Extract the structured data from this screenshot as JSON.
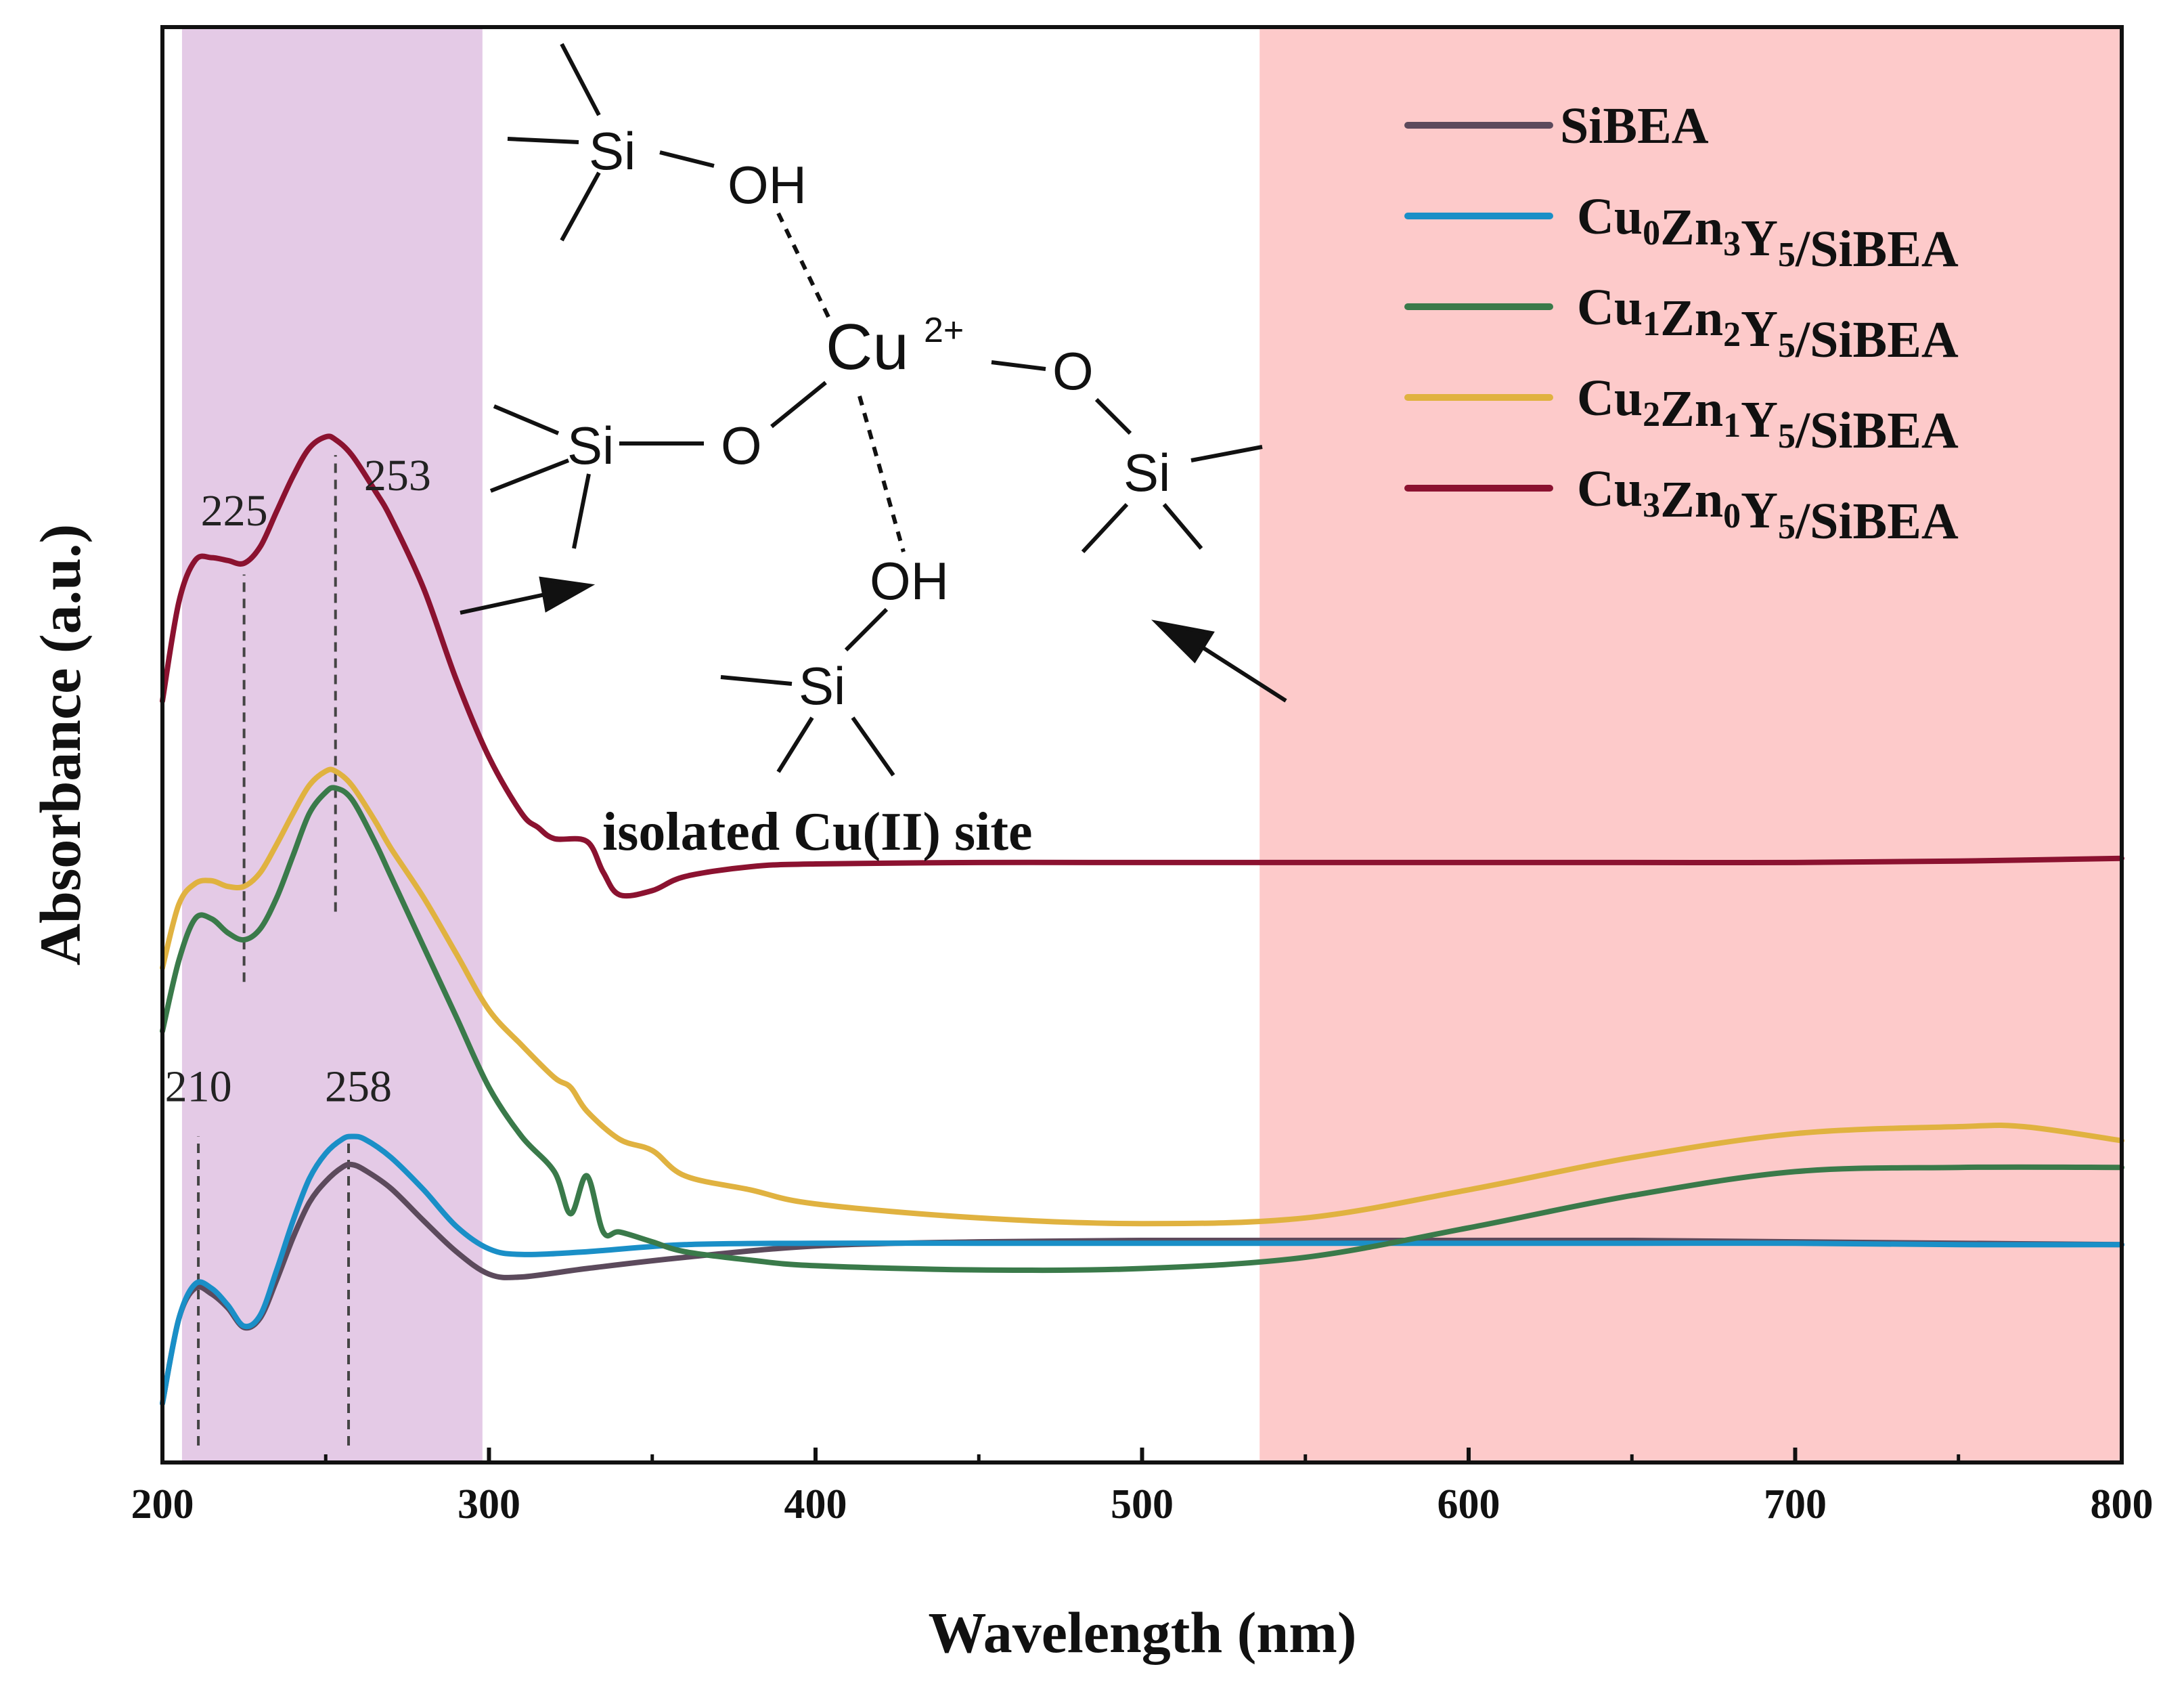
{
  "chart_data": {
    "type": "line",
    "title": "",
    "xlabel": "Wavelength (nm)",
    "ylabel": "Absorbance (a.u.)",
    "xlim": [
      200,
      800
    ],
    "ylim": [
      0,
      1
    ],
    "xticks": [
      200,
      300,
      400,
      500,
      600,
      700,
      800
    ],
    "yticks_shown": false,
    "shaded_regions": [
      {
        "x_start": 206,
        "x_end": 298,
        "color": "#e4cae6"
      },
      {
        "x_start": 536,
        "x_end": 800,
        "color": "#fdcaca"
      }
    ],
    "series": [
      {
        "name": "SiBEA",
        "color": "#5c4a5c",
        "x": [
          200,
          205,
          210,
          215,
          220,
          225,
          230,
          235,
          240,
          245,
          250,
          255,
          258,
          262,
          270,
          280,
          290,
          300,
          310,
          330,
          360,
          400,
          450,
          500,
          550,
          600,
          650,
          700,
          750,
          800
        ],
        "y": [
          0.03,
          0.09,
          0.112,
          0.108,
          0.098,
          0.084,
          0.091,
          0.118,
          0.148,
          0.173,
          0.188,
          0.198,
          0.2,
          0.196,
          0.183,
          0.16,
          0.138,
          0.122,
          0.12,
          0.126,
          0.134,
          0.142,
          0.145,
          0.146,
          0.146,
          0.146,
          0.146,
          0.145,
          0.144,
          0.143
        ]
      },
      {
        "name": "Cu0Zn3Y5/SiBEA",
        "color": "#1a8fc7",
        "x": [
          200,
          205,
          210,
          215,
          220,
          225,
          230,
          235,
          240,
          245,
          250,
          255,
          258,
          262,
          270,
          280,
          290,
          300,
          310,
          330,
          360,
          400,
          450,
          500,
          550,
          600,
          650,
          700,
          750,
          800
        ],
        "y": [
          0.03,
          0.09,
          0.115,
          0.112,
          0.1,
          0.085,
          0.093,
          0.125,
          0.16,
          0.19,
          0.208,
          0.218,
          0.22,
          0.218,
          0.205,
          0.182,
          0.156,
          0.14,
          0.136,
          0.138,
          0.143,
          0.144,
          0.144,
          0.144,
          0.144,
          0.144,
          0.144,
          0.144,
          0.143,
          0.143
        ]
      },
      {
        "name": "Cu1Zn2Y5/SiBEA",
        "color": "#3a7a4a",
        "x": [
          200,
          205,
          210,
          215,
          220,
          225,
          230,
          235,
          240,
          245,
          250,
          253,
          258,
          265,
          270,
          280,
          290,
          300,
          310,
          320,
          325,
          330,
          335,
          340,
          350,
          360,
          380,
          400,
          450,
          500,
          550,
          600,
          650,
          700,
          750,
          800
        ],
        "y": [
          0.295,
          0.345,
          0.375,
          0.375,
          0.365,
          0.36,
          0.368,
          0.39,
          0.42,
          0.45,
          0.465,
          0.468,
          0.46,
          0.43,
          0.405,
          0.355,
          0.305,
          0.255,
          0.22,
          0.195,
          0.165,
          0.192,
          0.152,
          0.152,
          0.145,
          0.138,
          0.132,
          0.128,
          0.125,
          0.126,
          0.134,
          0.155,
          0.178,
          0.195,
          0.198,
          0.198
        ]
      },
      {
        "name": "Cu2Zn1Y5/SiBEA",
        "color": "#e0b240",
        "x": [
          200,
          205,
          210,
          215,
          220,
          225,
          230,
          235,
          240,
          245,
          250,
          253,
          258,
          265,
          270,
          280,
          290,
          300,
          310,
          320,
          325,
          330,
          340,
          350,
          360,
          380,
          400,
          450,
          500,
          550,
          600,
          650,
          700,
          750,
          770,
          800
        ],
        "y": [
          0.34,
          0.385,
          0.4,
          0.402,
          0.398,
          0.398,
          0.408,
          0.428,
          0.45,
          0.47,
          0.48,
          0.48,
          0.47,
          0.445,
          0.425,
          0.39,
          0.35,
          0.31,
          0.285,
          0.262,
          0.255,
          0.238,
          0.218,
          0.21,
          0.192,
          0.182,
          0.172,
          0.162,
          0.158,
          0.162,
          0.182,
          0.205,
          0.222,
          0.227,
          0.227,
          0.217
        ]
      },
      {
        "name": "Cu3Zn0Y5/SiBEA",
        "color": "#8b1230",
        "x": [
          200,
          205,
          210,
          215,
          220,
          225,
          230,
          235,
          240,
          245,
          250,
          253,
          258,
          265,
          270,
          280,
          290,
          300,
          310,
          315,
          320,
          330,
          335,
          340,
          350,
          360,
          380,
          400,
          450,
          500,
          550,
          600,
          650,
          700,
          750,
          800
        ],
        "y": [
          0.53,
          0.6,
          0.63,
          0.632,
          0.63,
          0.628,
          0.64,
          0.665,
          0.69,
          0.71,
          0.718,
          0.716,
          0.705,
          0.68,
          0.66,
          0.61,
          0.545,
          0.49,
          0.45,
          0.44,
          0.432,
          0.43,
          0.408,
          0.392,
          0.395,
          0.405,
          0.412,
          0.414,
          0.415,
          0.415,
          0.415,
          0.415,
          0.415,
          0.415,
          0.416,
          0.418
        ]
      }
    ],
    "peak_markers": [
      {
        "x": 225,
        "y_from": 0.33,
        "y_to": 0.62,
        "label": "225",
        "label_x": 222,
        "label_y": 0.655
      },
      {
        "x": 253,
        "y_from": 0.38,
        "y_to": 0.705,
        "label": "253",
        "label_x": 272,
        "label_y": 0.68
      },
      {
        "x": 211,
        "y_from": 0.0,
        "y_to": 0.22,
        "label": "210",
        "label_x": 211,
        "label_y": 0.245
      },
      {
        "x": 257,
        "y_from": 0.0,
        "y_to": 0.22,
        "label": "258",
        "label_x": 260,
        "label_y": 0.245
      }
    ]
  },
  "legend": {
    "items": [
      {
        "label": "SiBEA",
        "parts": [
          {
            "t": "SiBEA"
          }
        ]
      },
      {
        "label": "Cu0Zn3Y5/SiBEA",
        "parts": [
          {
            "t": "Cu"
          },
          {
            "t": "0",
            "sub": true
          },
          {
            "t": "Zn"
          },
          {
            "t": "3",
            "sub": true
          },
          {
            "t": "Y"
          },
          {
            "t": "5",
            "sub": true
          },
          {
            "t": "/SiBEA"
          }
        ]
      },
      {
        "label": "Cu1Zn2Y5/SiBEA",
        "parts": [
          {
            "t": "Cu"
          },
          {
            "t": "1",
            "sub": true
          },
          {
            "t": "Zn"
          },
          {
            "t": "2",
            "sub": true
          },
          {
            "t": "Y"
          },
          {
            "t": "5",
            "sub": true
          },
          {
            "t": "/SiBEA"
          }
        ]
      },
      {
        "label": "Cu2Zn1Y5/SiBEA",
        "parts": [
          {
            "t": "Cu"
          },
          {
            "t": "2",
            "sub": true
          },
          {
            "t": "Zn"
          },
          {
            "t": "1",
            "sub": true
          },
          {
            "t": "Y"
          },
          {
            "t": "5",
            "sub": true
          },
          {
            "t": "/SiBEA"
          }
        ]
      },
      {
        "label": "Cu3Zn0Y5/SiBEA",
        "parts": [
          {
            "t": "Cu"
          },
          {
            "t": "3",
            "sub": true
          },
          {
            "t": "Zn"
          },
          {
            "t": "0",
            "sub": true
          },
          {
            "t": "Y"
          },
          {
            "t": "5",
            "sub": true
          },
          {
            "t": "/SiBEA"
          }
        ]
      }
    ]
  },
  "inset": {
    "caption": "isolated Cu(II) site",
    "si": "Si",
    "oh": "OH",
    "o": "O",
    "cu": "Cu",
    "charge": "2+"
  }
}
